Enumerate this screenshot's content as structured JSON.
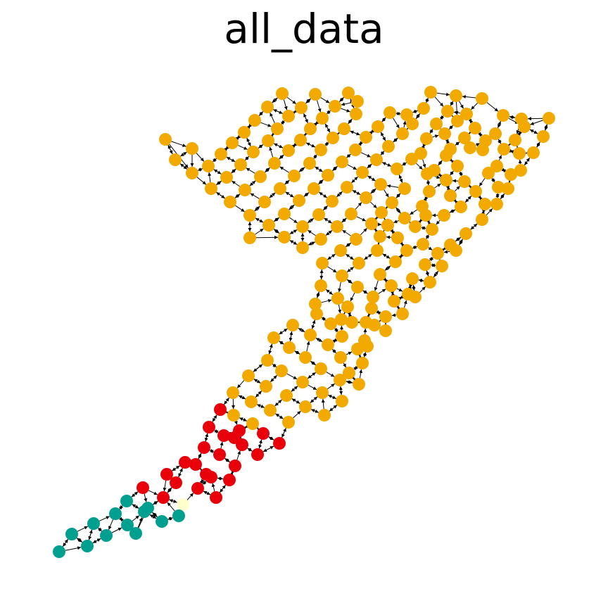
{
  "title": "all_data",
  "colors": {
    "main": "#f2a900",
    "red": "#e8000b",
    "teal": "#009f8f",
    "pale": "#ffffcc",
    "edge": "#000000"
  },
  "graph": {
    "groups": [
      "main",
      "red",
      "teal",
      "pale"
    ]
  }
}
